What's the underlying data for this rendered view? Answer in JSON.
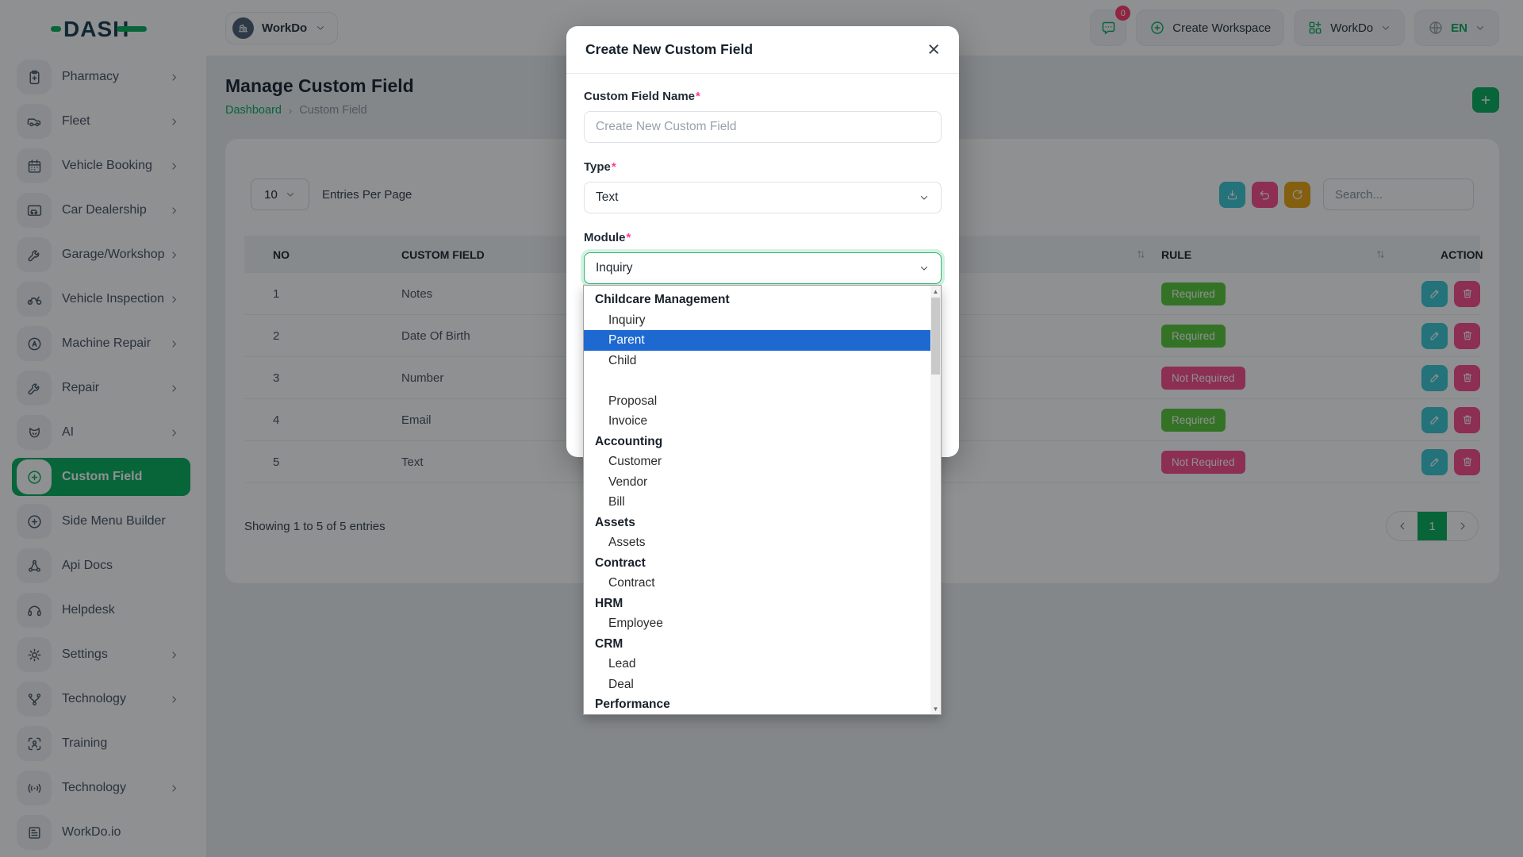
{
  "colors": {
    "primary": "#0caf60",
    "logo-navy": "#1d4055",
    "success": "#5ccb3d",
    "danger": "#fc4f8d",
    "info": "#3ec9d6",
    "warning": "#eda714",
    "selection": "#1e68d2",
    "asterisk": "#fd3995",
    "badge-red": "#ff3f6e"
  },
  "brand": {
    "logo_text": "DASH"
  },
  "sidebar": {
    "items": [
      {
        "label": "Pharmacy",
        "icon": "clipboard-plus-icon",
        "has_submenu": true
      },
      {
        "label": "Fleet",
        "icon": "van-icon",
        "has_submenu": true
      },
      {
        "label": "Vehicle Booking",
        "icon": "calendar-icon",
        "has_submenu": true
      },
      {
        "label": "Car Dealership",
        "icon": "car-icon",
        "has_submenu": true
      },
      {
        "label": "Garage/Workshop",
        "icon": "wrench-icon",
        "has_submenu": true
      },
      {
        "label": "Vehicle Inspection",
        "icon": "motorbike-icon",
        "has_submenu": true
      },
      {
        "label": "Machine Repair",
        "icon": "gauge-icon",
        "has_submenu": true
      },
      {
        "label": "Repair",
        "icon": "wrench-icon",
        "has_submenu": true
      },
      {
        "label": "AI",
        "icon": "ai-icon",
        "has_submenu": true
      },
      {
        "label": "Custom Field",
        "icon": "plus-circle-icon",
        "has_submenu": false,
        "active": true
      },
      {
        "label": "Side Menu Builder",
        "icon": "plus-circle-icon",
        "has_submenu": false
      },
      {
        "label": "Api Docs",
        "icon": "nodes-icon",
        "has_submenu": false
      },
      {
        "label": "Helpdesk",
        "icon": "headset-icon",
        "has_submenu": false
      },
      {
        "label": "Settings",
        "icon": "gear-icon",
        "has_submenu": true
      },
      {
        "label": "Technology",
        "icon": "branch-icon",
        "has_submenu": true
      },
      {
        "label": "Training",
        "icon": "target-icon",
        "has_submenu": false
      },
      {
        "label": "Technology",
        "icon": "signal-icon",
        "has_submenu": true
      },
      {
        "label": "WorkDo.io",
        "icon": "news-icon",
        "has_submenu": false
      }
    ]
  },
  "topbar": {
    "workspace_name": "WorkDo",
    "chat_badge": "0",
    "create_workspace_label": "Create Workspace",
    "app_menu_label": "WorkDo",
    "language": "EN"
  },
  "page": {
    "title": "Manage Custom Field",
    "breadcrumb_home": "Dashboard",
    "breadcrumb_sep": "›",
    "breadcrumb_current": "Custom Field"
  },
  "toolbar": {
    "entries_value": "10",
    "entries_label": "Entries Per Page",
    "search_placeholder": "Search..."
  },
  "table": {
    "columns": [
      "NO",
      "CUSTOM FIELD",
      "RULE",
      "ACTION"
    ],
    "rows": [
      {
        "no": "1",
        "custom_field": "Notes",
        "rule": "Required"
      },
      {
        "no": "2",
        "custom_field": "Date Of Birth",
        "rule": "Required"
      },
      {
        "no": "3",
        "custom_field": "Number",
        "rule": "Not Required"
      },
      {
        "no": "4",
        "custom_field": "Email",
        "rule": "Required"
      },
      {
        "no": "5",
        "custom_field": "Text",
        "rule": "Not Required"
      }
    ]
  },
  "footer": {
    "summary": "Showing 1 to 5 of 5 entries",
    "page_number": "1"
  },
  "modal": {
    "title": "Create New Custom Field",
    "close_label": "×",
    "name_label": "Custom Field Name",
    "name_placeholder": "Create New Custom Field",
    "type_label": "Type",
    "type_value": "Text",
    "module_label": "Module",
    "module_value": "Inquiry"
  },
  "module_dropdown": {
    "entries": [
      {
        "type": "group",
        "label": "Childcare Management"
      },
      {
        "type": "item",
        "label": "Inquiry"
      },
      {
        "type": "item",
        "label": "Parent",
        "highlighted": true
      },
      {
        "type": "item",
        "label": "Child"
      },
      {
        "type": "group",
        "label": ""
      },
      {
        "type": "item",
        "label": "Proposal"
      },
      {
        "type": "item",
        "label": "Invoice"
      },
      {
        "type": "group",
        "label": "Accounting"
      },
      {
        "type": "item",
        "label": "Customer"
      },
      {
        "type": "item",
        "label": "Vendor"
      },
      {
        "type": "item",
        "label": "Bill"
      },
      {
        "type": "group",
        "label": "Assets"
      },
      {
        "type": "item",
        "label": "Assets"
      },
      {
        "type": "group",
        "label": "Contract"
      },
      {
        "type": "item",
        "label": "Contract"
      },
      {
        "type": "group",
        "label": "HRM"
      },
      {
        "type": "item",
        "label": "Employee"
      },
      {
        "type": "group",
        "label": "CRM"
      },
      {
        "type": "item",
        "label": "Lead"
      },
      {
        "type": "item",
        "label": "Deal"
      },
      {
        "type": "group",
        "label": "Performance"
      }
    ]
  }
}
